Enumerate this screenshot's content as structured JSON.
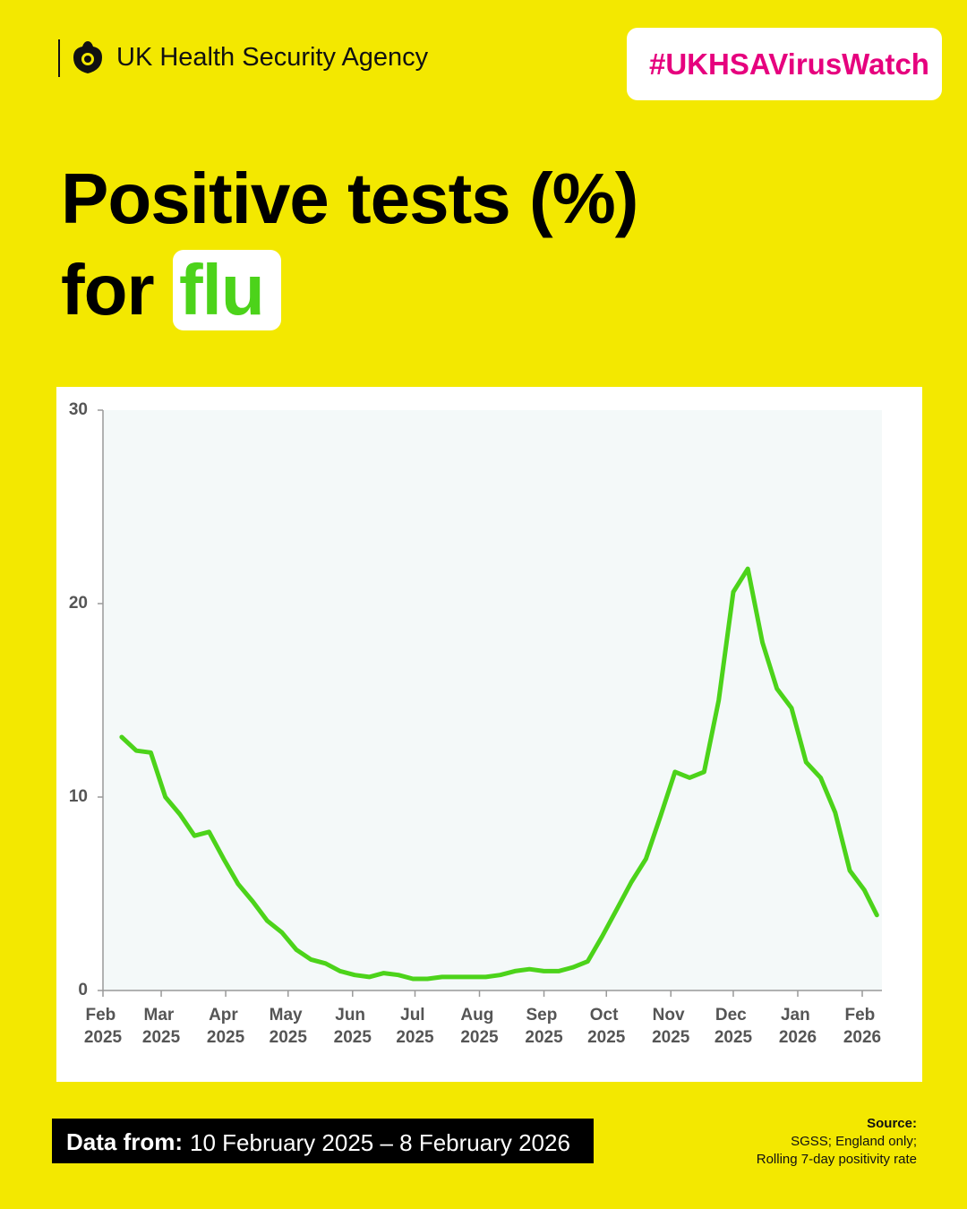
{
  "header": {
    "org": "UK Health Security Agency",
    "hashtag": "#UKHSAVirusWatch"
  },
  "title": {
    "line1": "Positive tests (%)",
    "line2": "for",
    "highlight": "flu"
  },
  "chart_data": {
    "type": "line",
    "x": [
      "2025-02-10",
      "2025-02-17",
      "2025-02-24",
      "2025-03-03",
      "2025-03-10",
      "2025-03-17",
      "2025-03-24",
      "2025-03-31",
      "2025-04-07",
      "2025-04-14",
      "2025-04-21",
      "2025-04-28",
      "2025-05-05",
      "2025-05-12",
      "2025-05-19",
      "2025-05-26",
      "2025-06-02",
      "2025-06-09",
      "2025-06-16",
      "2025-06-23",
      "2025-06-30",
      "2025-07-07",
      "2025-07-14",
      "2025-07-21",
      "2025-07-28",
      "2025-08-04",
      "2025-08-11",
      "2025-08-18",
      "2025-08-25",
      "2025-09-01",
      "2025-09-08",
      "2025-09-15",
      "2025-09-22",
      "2025-09-29",
      "2025-10-06",
      "2025-10-13",
      "2025-10-20",
      "2025-10-27",
      "2025-11-03",
      "2025-11-10",
      "2025-11-17",
      "2025-11-24",
      "2025-12-01",
      "2025-12-08",
      "2025-12-15",
      "2025-12-22",
      "2025-12-29",
      "2026-01-05",
      "2026-01-12",
      "2026-01-19",
      "2026-01-26",
      "2026-02-02",
      "2026-02-08"
    ],
    "values": [
      13.1,
      12.4,
      12.3,
      10.0,
      9.1,
      8.0,
      8.2,
      6.8,
      5.5,
      4.6,
      3.6,
      3.0,
      2.1,
      1.6,
      1.4,
      1.0,
      0.8,
      0.7,
      0.9,
      0.8,
      0.6,
      0.6,
      0.7,
      0.7,
      0.7,
      0.7,
      0.8,
      1.0,
      1.1,
      1.0,
      1.0,
      1.2,
      1.5,
      2.8,
      4.2,
      5.6,
      6.8,
      9.0,
      11.3,
      11.0,
      11.3,
      15.0,
      20.6,
      21.8,
      18.0,
      15.6,
      14.6,
      11.8,
      11.0,
      9.2,
      6.2,
      5.2,
      3.9
    ],
    "color": "#4cd31a",
    "ylim": [
      0,
      30
    ],
    "yticks": [
      0,
      10,
      20,
      30
    ],
    "xlim": [
      "2025-02",
      "2026-02"
    ],
    "xticks": [
      {
        "value": "2025-02",
        "label": "Feb 2025"
      },
      {
        "value": "2025-03",
        "label": "Mar 2025"
      },
      {
        "value": "2025-04",
        "label": "Apr 2025"
      },
      {
        "value": "2025-05",
        "label": "May 2025"
      },
      {
        "value": "2025-06",
        "label": "Jun 2025"
      },
      {
        "value": "2025-07",
        "label": "Jul 2025"
      },
      {
        "value": "2025-08",
        "label": "Aug 2025"
      },
      {
        "value": "2025-09",
        "label": "Sep 2025"
      },
      {
        "value": "2025-10",
        "label": "Oct 2025"
      },
      {
        "value": "2025-11",
        "label": "Nov 2025"
      },
      {
        "value": "2025-12",
        "label": "Dec 2025"
      },
      {
        "value": "2026-01",
        "label": "Jan 2026"
      },
      {
        "value": "2026-02",
        "label": "Feb 2026"
      }
    ],
    "grid": false
  },
  "footer": {
    "data_from_label": "Data from:",
    "data_from": "10 February 2025 – 8 February 2026",
    "source_label": "Source:",
    "source_lines": [
      "SGSS; England only;",
      "Rolling 7-day positivity rate"
    ]
  }
}
